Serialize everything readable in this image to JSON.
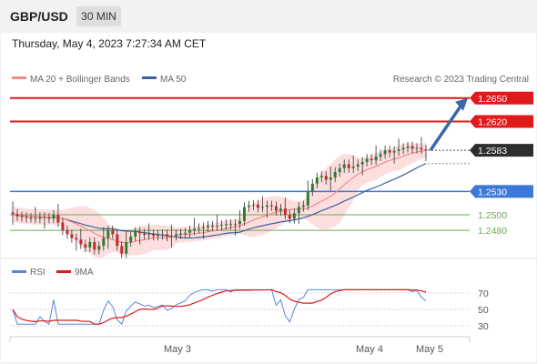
{
  "header": {
    "symbol": "GBP/USD",
    "timeframe": "30 MIN",
    "datetime": "Thursday, May 4, 2023 7:27:34 AM CET"
  },
  "legend": {
    "ma20_label": "MA 20 + Bollinger Bands",
    "ma50_label": "MA 50",
    "credit": "Research © 2023 Trading Central"
  },
  "colors": {
    "resistance": "#e0191b",
    "support": "#3b78d8",
    "target_support": "#6aaa55",
    "ma20": "#f28a8a",
    "ma50": "#3b5f9e",
    "bollinger": "#fcdede",
    "candle_up": "#2e7d32",
    "candle_down": "#c62828",
    "rsi": "#5b86d6",
    "rsi_ma": "#e0191b",
    "arrow": "#3b67a8",
    "current_price_box": "#2d2d2d"
  },
  "chart_data": [
    {
      "type": "candlestick",
      "title": "GBP/USD",
      "timeframe": "30 MIN",
      "ylim": [
        1.2445,
        1.2665
      ],
      "x_tick_labels": [
        "May 3",
        "May 4",
        "May 5"
      ],
      "levels": [
        {
          "label": "1.2650",
          "value": 1.265,
          "kind": "resistance"
        },
        {
          "label": "1.2620",
          "value": 1.262,
          "kind": "resistance"
        },
        {
          "label": "1.2583",
          "value": 1.2583,
          "kind": "last_price"
        },
        {
          "label": "1.2530",
          "value": 1.253,
          "kind": "pivot"
        },
        {
          "label": "1.2500",
          "value": 1.25,
          "kind": "support"
        },
        {
          "label": "1.2480",
          "value": 1.248,
          "kind": "support"
        }
      ],
      "last_price": 1.2583,
      "closes": [
        1.2501,
        1.2498,
        1.2497,
        1.2496,
        1.2496,
        1.2495,
        1.2497,
        1.2496,
        1.2495,
        1.25,
        1.249,
        1.248,
        1.2475,
        1.247,
        1.2468,
        1.2462,
        1.2458,
        1.2465,
        1.2455,
        1.246,
        1.247,
        1.248,
        1.2475,
        1.246,
        1.245,
        1.2465,
        1.2472,
        1.2478,
        1.2476,
        1.2474,
        1.2475,
        1.2473,
        1.2474,
        1.2475,
        1.2472,
        1.2473,
        1.2475,
        1.2476,
        1.2477,
        1.248,
        1.2482,
        1.2483,
        1.2484,
        1.2486,
        1.2485,
        1.2486,
        1.2487,
        1.2488,
        1.2487,
        1.2488,
        1.2492,
        1.251,
        1.2512,
        1.2513,
        1.2509,
        1.251,
        1.2512,
        1.2511,
        1.2505,
        1.2508,
        1.25,
        1.2495,
        1.2502,
        1.251,
        1.2512,
        1.253,
        1.254,
        1.2548,
        1.255,
        1.2545,
        1.2548,
        1.2555,
        1.256,
        1.2565,
        1.256,
        1.2562,
        1.2565,
        1.2568,
        1.2572,
        1.257,
        1.2575,
        1.2578,
        1.2583,
        1.258,
        1.2582,
        1.2584,
        1.2586,
        1.2588,
        1.2585,
        1.2586,
        1.2584,
        1.2583
      ],
      "series": [
        {
          "name": "MA 20 + Bollinger Bands"
        },
        {
          "name": "MA 50"
        }
      ]
    },
    {
      "type": "line",
      "series": [
        {
          "name": "RSI"
        },
        {
          "name": "9MA"
        }
      ],
      "ylim": [
        20,
        80
      ],
      "y_ticks": [
        70,
        50,
        30
      ]
    }
  ]
}
